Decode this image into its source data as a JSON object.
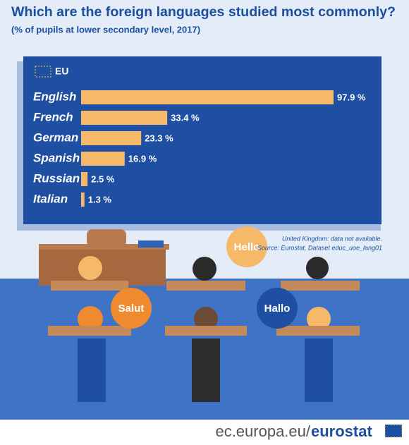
{
  "chart_data": {
    "type": "bar",
    "title": "Which are the foreign languages studied most commonly?",
    "subtitle": "(% of pupils at lower secondary level, 2017)",
    "legend": "EU",
    "categories": [
      "English",
      "French",
      "German",
      "Spanish",
      "Russian",
      "Italian"
    ],
    "values": [
      97.9,
      33.4,
      23.3,
      16.9,
      2.5,
      1.3
    ],
    "value_labels": [
      "97.9 %",
      "33.4 %",
      "23.3 %",
      "16.9 %",
      "2.5 %",
      "1.3 %"
    ],
    "color": "#f6b96a",
    "notes": [
      "United Kingdom: data not available.",
      "Source: Eurostat, Dataset educ_uoe_lang01"
    ],
    "bubbles": [
      "Hello",
      "Salut",
      "Hallo"
    ],
    "footer": {
      "site": "ec.europa.eu/",
      "brand": "eurostat"
    }
  }
}
